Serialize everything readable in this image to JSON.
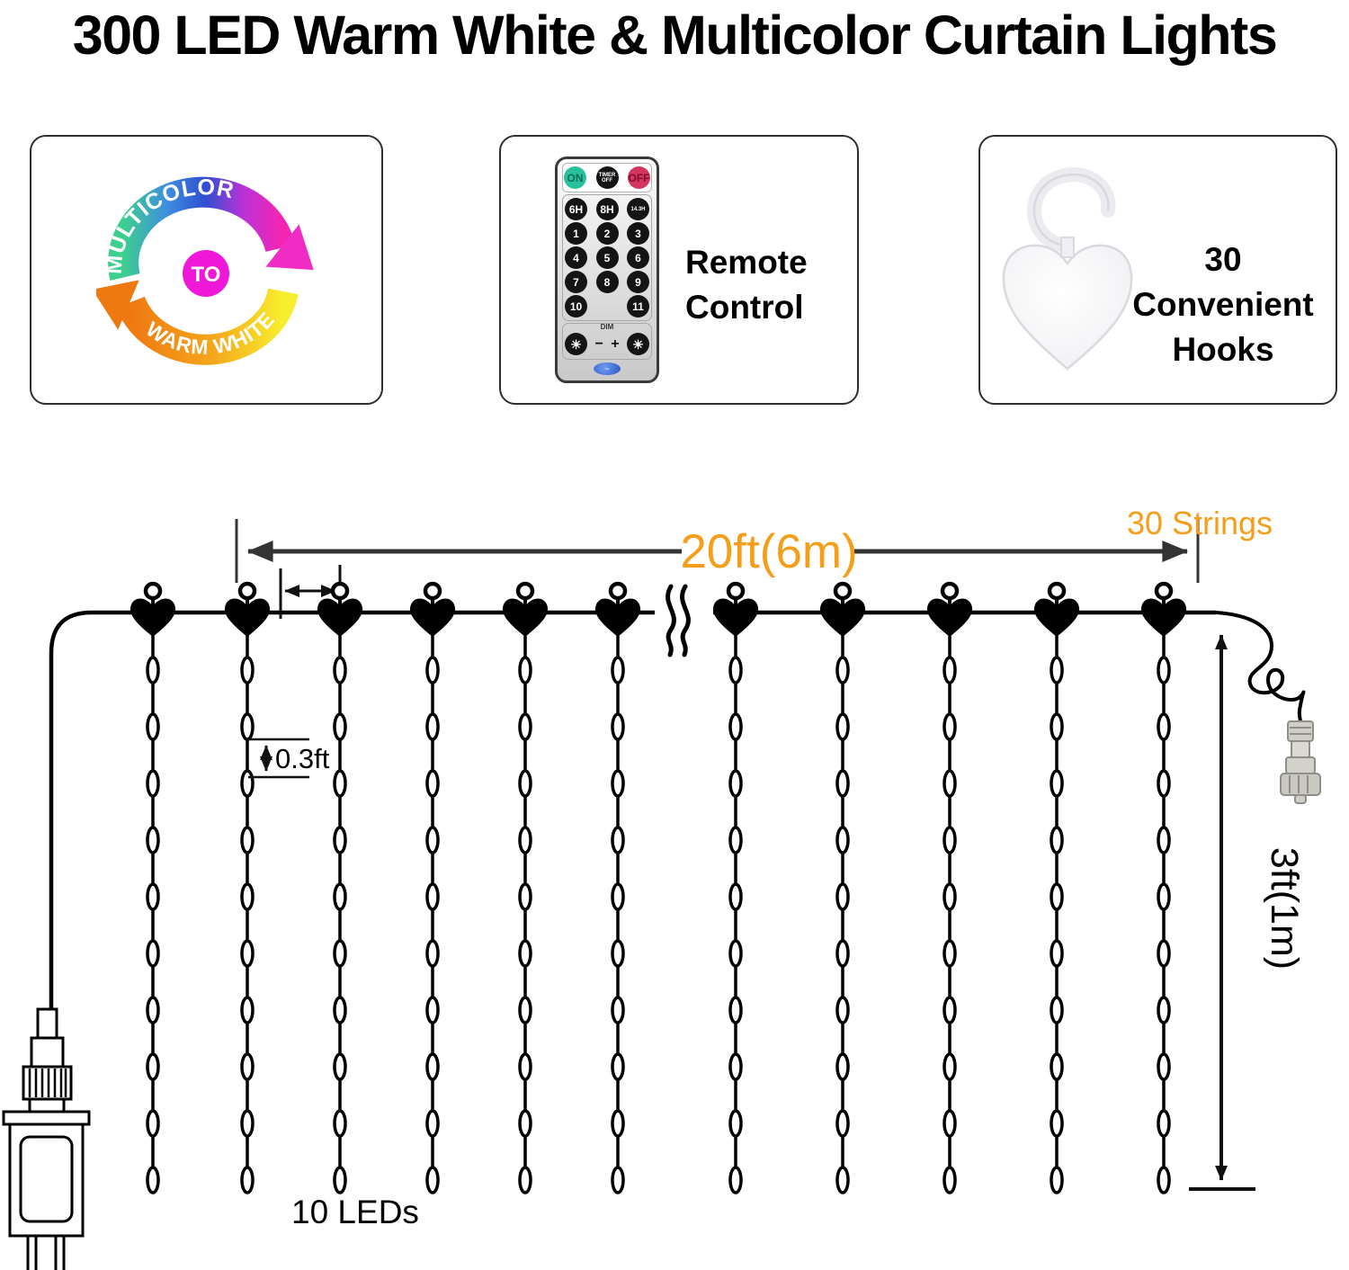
{
  "title": "300 LED Warm White & Multicolor Curtain Lights",
  "features": {
    "color_cycle": {
      "top_arrow_label": "MULTICOLOR",
      "center_label": "TO",
      "bottom_arrow_label": "WARM WHITE"
    },
    "remote": {
      "caption": "Remote Control",
      "dim_label": "DIM",
      "minus_label": "−",
      "plus_label": "+",
      "brightness_icon": "☀",
      "rows": [
        [
          {
            "label": "ON",
            "color": "green"
          },
          {
            "label": "TIMER OFF",
            "color": "black"
          },
          {
            "label": "OFF",
            "color": "red"
          }
        ],
        [
          {
            "label": "6H"
          },
          {
            "label": "8H"
          },
          {
            "label": "14.3H"
          }
        ],
        [
          {
            "label": "1"
          },
          {
            "label": "2"
          },
          {
            "label": "3"
          }
        ],
        [
          {
            "label": "4"
          },
          {
            "label": "5"
          },
          {
            "label": "6"
          }
        ],
        [
          {
            "label": "7"
          },
          {
            "label": "8"
          },
          {
            "label": "9"
          }
        ],
        [
          {
            "label": "10"
          },
          null,
          {
            "label": "11"
          }
        ]
      ]
    },
    "hooks": {
      "caption": "30 Convenient Hooks"
    }
  },
  "diagram": {
    "strings_count_label": "30 Strings",
    "width_label": "20ft(6m)",
    "led_spacing_label": "0.3ft",
    "leds_per_string_label": "10 LEDs",
    "drop_height_label": "3ft(1m)",
    "leds_per_string": 10,
    "strings_drawn": 11
  },
  "colors": {
    "dimension_accent": "#F59E19",
    "line": "#333333"
  }
}
